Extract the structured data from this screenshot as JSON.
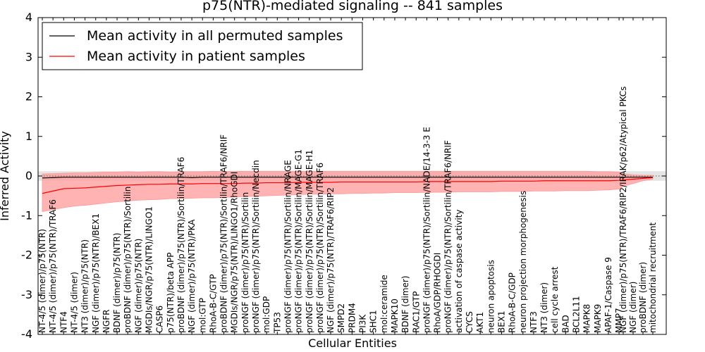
{
  "chart_data": {
    "type": "line",
    "title": "p75(NTR)-mediated signaling -- 841 samples",
    "xlabel": "Cellular Entities",
    "ylabel": "Inferred Activity",
    "ylim": [
      -4,
      4
    ],
    "yticks": [
      -4,
      -3,
      -2,
      -1,
      0,
      1,
      2,
      3,
      4
    ],
    "grid": false,
    "legend_position": "top-left",
    "reference_line": 0,
    "colors": {
      "permuted": "#000000",
      "patient": "#ff0000",
      "patient_band": "#ff9999",
      "permuted_band": "#d9d9d9",
      "reference": "#666666"
    },
    "categories": [
      "NT-4/5 (dimer)/p75(NTR)",
      "NT-4/5 (dimer)/p75(NTR)/TRAF6",
      "NTF4",
      "NT-4/5 (dimer)",
      "NT3 (dimer)/p75(NTR)",
      "NGF (dimer)/p75(NTR)/BEX1",
      "NGFR",
      "BDNF (dimer)/p75(NTR)",
      "proBDNF (dimer)/p75(NTR)/Sortilin",
      "NGF (dimer)/p75(NTR)",
      "MGDIs/NGR/p75(NTR)/LINGO1",
      "CASP6",
      "p75(NTR)/beta APP",
      "proBDNF (dimer)/p75(NTR)/Sortilin/TRAF6",
      "NGF (dimer)/p75(NTR)/PKA",
      "mol:GTP",
      "RhoA-B-C/GTP",
      "proBDNF (dimer)/p75(NTR)/Sortilin/TRAF6/NRIF",
      "MGDIs/NGR/p75(NTR)/LINGO1/RhoGDI",
      "proNGF (dimer)/p75(NTR)/Sortilin",
      "proNGF (dimer)/p75(NTR)/Sortilin/Necdin",
      "mol:GDP",
      "TP53",
      "proNGF (dimer)/p75(NTR)/Sortilin/NRAGE",
      "proNGF (dimer)/p75(NTR)/Sortilin/MAGE-G1",
      "proNGF (dimer)/p75(NTR)/Sortilin/MAGE-H1",
      "proNGF (dimer)/p75(NTR)/Sortilin/TRAF6",
      "NGF (dimer)/p75(NTR)/TRAF6/RIP2",
      "SMPD2",
      "PRDM4",
      "PI3K",
      "SHC1",
      "mol:ceramide",
      "MAPK10",
      "BDNF (dimer)",
      "RAC1/GTP",
      "proNGF (dimer)/p75(NTR)/Sortilin/NADE/14-3-3 E",
      "RhoA/GDP/RHOGDI",
      "proNGF (dimer)/p75(NTR)/Sortilin/TRAF6/NRIF",
      "activation of caspase activity",
      "CYCS",
      "AKT1",
      "neuron apoptosis",
      "BEX1",
      "RhoA-B-C/GDP",
      "neuron projection morphogenesis",
      "NTF3",
      "NT3 (dimer)",
      "cell cycle arrest",
      "BAD",
      "BCL2L11",
      "MAPK8",
      "MAPK9",
      "APAF-1/Caspase 9",
      "MMP7",
      "NGF (dimer)/p75(NTR)/TRAF6/RIP2/IRAK/p62/Atypical PKCs",
      "NGF (dimer)",
      "proBDNF (dimer)",
      "mitochondrial recruitment"
    ],
    "series": [
      {
        "name": "Mean activity in all permuted samples",
        "values": [
          -0.05,
          -0.04,
          -0.03,
          -0.03,
          -0.03,
          -0.03,
          -0.03,
          -0.03,
          -0.03,
          -0.03,
          -0.03,
          -0.03,
          -0.03,
          -0.03,
          -0.04,
          -0.03,
          -0.03,
          -0.03,
          -0.03,
          -0.03,
          -0.03,
          -0.03,
          -0.03,
          -0.03,
          -0.03,
          -0.03,
          -0.03,
          -0.03,
          -0.03,
          -0.03,
          -0.03,
          -0.03,
          -0.03,
          -0.03,
          -0.03,
          -0.03,
          -0.03,
          -0.03,
          -0.03,
          -0.03,
          -0.03,
          -0.03,
          -0.03,
          -0.03,
          -0.03,
          -0.03,
          -0.03,
          -0.03,
          -0.03,
          -0.03,
          -0.03,
          -0.03,
          -0.03,
          -0.03,
          -0.03,
          -0.03,
          -0.03,
          -0.03,
          -0.03
        ]
      },
      {
        "name": "Mean activity in patient samples",
        "values": [
          -0.44,
          -0.38,
          -0.32,
          -0.31,
          -0.3,
          -0.28,
          -0.26,
          -0.24,
          -0.23,
          -0.22,
          -0.21,
          -0.21,
          -0.2,
          -0.2,
          -0.2,
          -0.19,
          -0.19,
          -0.19,
          -0.19,
          -0.18,
          -0.18,
          -0.17,
          -0.17,
          -0.17,
          -0.16,
          -0.16,
          -0.16,
          -0.16,
          -0.15,
          -0.15,
          -0.15,
          -0.15,
          -0.15,
          -0.15,
          -0.15,
          -0.15,
          -0.14,
          -0.14,
          -0.14,
          -0.14,
          -0.14,
          -0.14,
          -0.14,
          -0.13,
          -0.13,
          -0.13,
          -0.13,
          -0.12,
          -0.12,
          -0.12,
          -0.12,
          -0.12,
          -0.12,
          -0.12,
          -0.11,
          -0.1,
          -0.08,
          -0.06,
          -0.04
        ]
      }
    ],
    "patient_band": {
      "upper": [
        0.05,
        0.06,
        0.07,
        0.08,
        0.08,
        0.09,
        0.1,
        0.1,
        0.11,
        0.1,
        0.11,
        0.11,
        0.1,
        0.11,
        0.11,
        0.11,
        0.12,
        0.11,
        0.12,
        0.12,
        0.12,
        0.12,
        0.12,
        0.12,
        0.12,
        0.12,
        0.12,
        0.12,
        0.12,
        0.12,
        0.12,
        0.12,
        0.12,
        0.12,
        0.12,
        0.12,
        0.12,
        0.12,
        0.12,
        0.12,
        0.12,
        0.12,
        0.12,
        0.12,
        0.12,
        0.12,
        0.12,
        0.12,
        0.12,
        0.12,
        0.12,
        0.12,
        0.11,
        0.11,
        0.1,
        0.06,
        0.03,
        0.02,
        0.02
      ],
      "lower": [
        -0.9,
        -0.85,
        -0.8,
        -0.76,
        -0.74,
        -0.71,
        -0.68,
        -0.65,
        -0.63,
        -0.61,
        -0.6,
        -0.59,
        -0.57,
        -0.57,
        -0.56,
        -0.55,
        -0.55,
        -0.54,
        -0.53,
        -0.52,
        -0.51,
        -0.5,
        -0.49,
        -0.48,
        -0.47,
        -0.46,
        -0.46,
        -0.45,
        -0.45,
        -0.44,
        -0.44,
        -0.43,
        -0.43,
        -0.42,
        -0.42,
        -0.42,
        -0.41,
        -0.41,
        -0.41,
        -0.4,
        -0.4,
        -0.4,
        -0.4,
        -0.39,
        -0.39,
        -0.39,
        -0.38,
        -0.38,
        -0.38,
        -0.37,
        -0.37,
        -0.37,
        -0.36,
        -0.35,
        -0.33,
        -0.26,
        -0.19,
        -0.12,
        -0.08
      ]
    },
    "permuted_band": {
      "upper": 0.12,
      "lower": -0.12
    }
  }
}
